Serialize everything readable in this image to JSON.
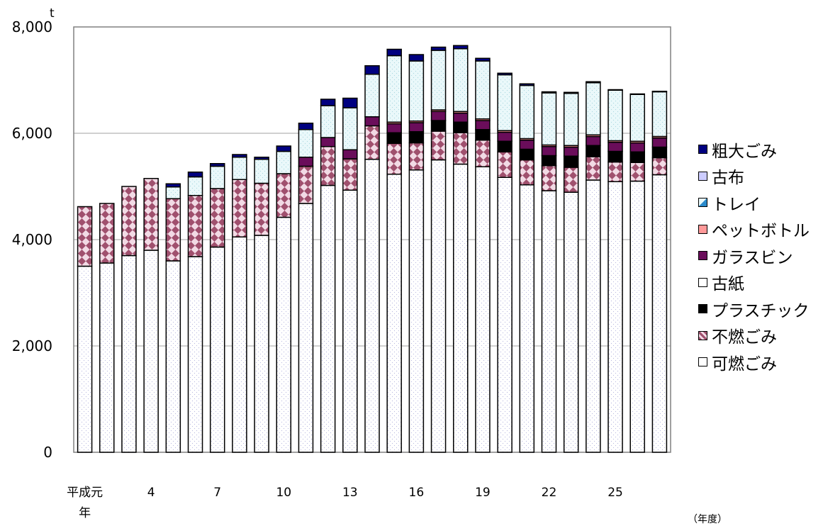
{
  "chart_data": {
    "type": "bar",
    "stacked": true,
    "unit": "t",
    "ylim": [
      0,
      8000
    ],
    "y_ticks": [
      "0",
      "2,000",
      "4,000",
      "6,000",
      "8,000"
    ],
    "x_tick_labels": [
      {
        "index": 0,
        "lines": [
          "平成元",
          "年"
        ]
      },
      {
        "index": 3,
        "lines": [
          "4"
        ]
      },
      {
        "index": 6,
        "lines": [
          "7"
        ]
      },
      {
        "index": 9,
        "lines": [
          "10"
        ]
      },
      {
        "index": 12,
        "lines": [
          "13"
        ]
      },
      {
        "index": 15,
        "lines": [
          "16"
        ]
      },
      {
        "index": 18,
        "lines": [
          "19"
        ]
      },
      {
        "index": 21,
        "lines": [
          "22"
        ]
      },
      {
        "index": 24,
        "lines": [
          "25"
        ]
      }
    ],
    "x_unit_label": "（年度）",
    "categories": [
      "1",
      "2",
      "3",
      "4",
      "5",
      "6",
      "7",
      "8",
      "9",
      "10",
      "11",
      "12",
      "13",
      "14",
      "15",
      "16",
      "17",
      "18",
      "19",
      "20",
      "21",
      "22",
      "23",
      "24",
      "25",
      "26",
      "27"
    ],
    "legend_position": "right",
    "series": [
      {
        "name": "可燃ごみ",
        "color": "#ffffff",
        "pattern": "dots",
        "values": [
          3500,
          3560,
          3700,
          3800,
          3600,
          3680,
          3860,
          4050,
          4080,
          4420,
          4680,
          5020,
          4930,
          5510,
          5230,
          5310,
          5500,
          5420,
          5370,
          5170,
          5030,
          4920,
          4890,
          5120,
          5090,
          5100,
          5220
        ]
      },
      {
        "name": "不燃ごみ",
        "color": "#a0506e",
        "pattern": "diamond",
        "values": [
          1120,
          1120,
          1300,
          1350,
          1170,
          1150,
          1100,
          1080,
          980,
          820,
          700,
          730,
          590,
          630,
          580,
          510,
          540,
          590,
          500,
          480,
          470,
          470,
          470,
          440,
          370,
          350,
          320
        ]
      },
      {
        "name": "プラスチック",
        "color": "#000000",
        "pattern": "solid",
        "values": [
          0,
          0,
          0,
          0,
          0,
          0,
          0,
          0,
          0,
          0,
          0,
          0,
          0,
          0,
          200,
          210,
          200,
          200,
          200,
          200,
          200,
          190,
          210,
          210,
          200,
          200,
          200
        ]
      },
      {
        "name": "古紙",
        "color": "#ffffff",
        "pattern": "solid",
        "values": [
          0,
          0,
          0,
          0,
          0,
          0,
          0,
          0,
          0,
          0,
          0,
          0,
          0,
          0,
          0,
          0,
          0,
          0,
          0,
          0,
          0,
          0,
          0,
          0,
          0,
          0,
          0
        ]
      },
      {
        "name": "ガラスビン",
        "color": "#6a0d5a",
        "pattern": "solid",
        "values": [
          0,
          0,
          0,
          0,
          0,
          0,
          0,
          0,
          0,
          0,
          170,
          170,
          170,
          170,
          170,
          170,
          170,
          170,
          170,
          170,
          170,
          170,
          170,
          170,
          170,
          170,
          170
        ]
      },
      {
        "name": "ペットボトル",
        "color": "#ff9999",
        "pattern": "solid",
        "values": [
          0,
          0,
          0,
          0,
          0,
          0,
          0,
          0,
          0,
          0,
          0,
          0,
          0,
          0,
          30,
          30,
          30,
          30,
          30,
          30,
          30,
          30,
          30,
          30,
          30,
          30,
          30
        ]
      },
      {
        "name": "トレイ",
        "color": "#e8f8fa",
        "pattern": "dots-light",
        "values": [
          0,
          0,
          0,
          0,
          220,
          350,
          420,
          420,
          450,
          420,
          520,
          600,
          790,
          800,
          1250,
          1130,
          1120,
          1180,
          1090,
          1050,
          1000,
          980,
          980,
          980,
          950,
          880,
          840
        ]
      },
      {
        "name": "古布",
        "color": "#ccccff",
        "pattern": "solid",
        "values": [
          0,
          0,
          0,
          0,
          0,
          0,
          0,
          0,
          0,
          0,
          0,
          0,
          0,
          0,
          0,
          0,
          0,
          0,
          0,
          0,
          0,
          0,
          0,
          0,
          0,
          0,
          0
        ]
      },
      {
        "name": "粗大ごみ",
        "color": "#000080",
        "pattern": "solid",
        "values": [
          0,
          0,
          0,
          0,
          60,
          90,
          50,
          50,
          40,
          100,
          120,
          120,
          180,
          160,
          120,
          120,
          60,
          60,
          50,
          30,
          30,
          20,
          20,
          20,
          10,
          10,
          10
        ]
      }
    ]
  }
}
